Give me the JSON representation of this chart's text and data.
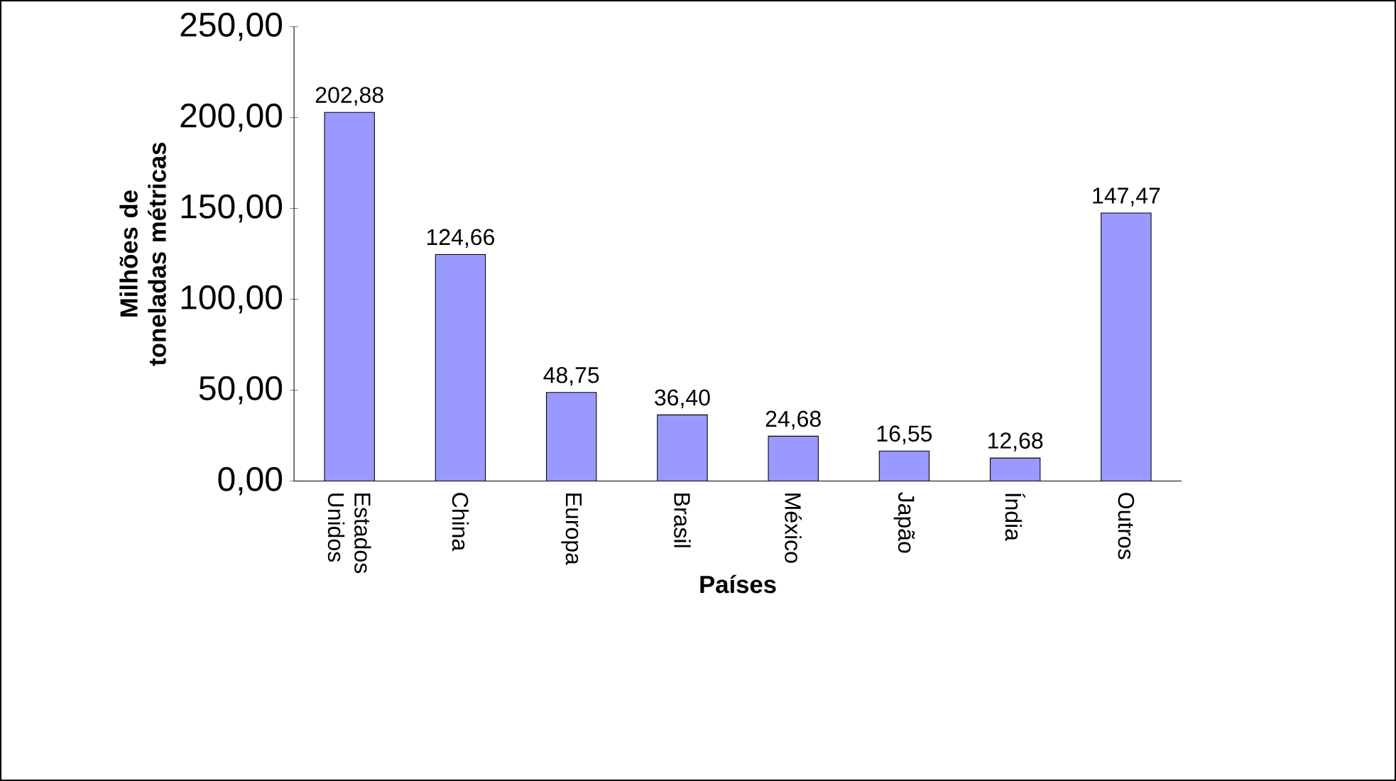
{
  "chart_data": {
    "type": "bar",
    "xlabel": "Países",
    "ylabel": "Milhões de toneladas métricas",
    "categories": [
      "Estados Unidos",
      "China",
      "Europa",
      "Brasil",
      "México",
      "Japão",
      "Índia",
      "Outros"
    ],
    "values": [
      202.88,
      124.66,
      48.75,
      36.4,
      24.68,
      16.55,
      12.68,
      147.47
    ],
    "value_labels": [
      "202,88",
      "124,66",
      "48,75",
      "36,40",
      "24,68",
      "16,55",
      "12,68",
      "147,47"
    ],
    "color": "#9999ff",
    "ylim": [
      0,
      250
    ],
    "yticks": [
      {
        "value": 0,
        "label": "0,00"
      },
      {
        "value": 50,
        "label": "50,00"
      },
      {
        "value": 100,
        "label": "100,00"
      },
      {
        "value": 150,
        "label": "150,00"
      },
      {
        "value": 200,
        "label": "200,00"
      },
      {
        "value": 250,
        "label": "250,00"
      }
    ]
  }
}
